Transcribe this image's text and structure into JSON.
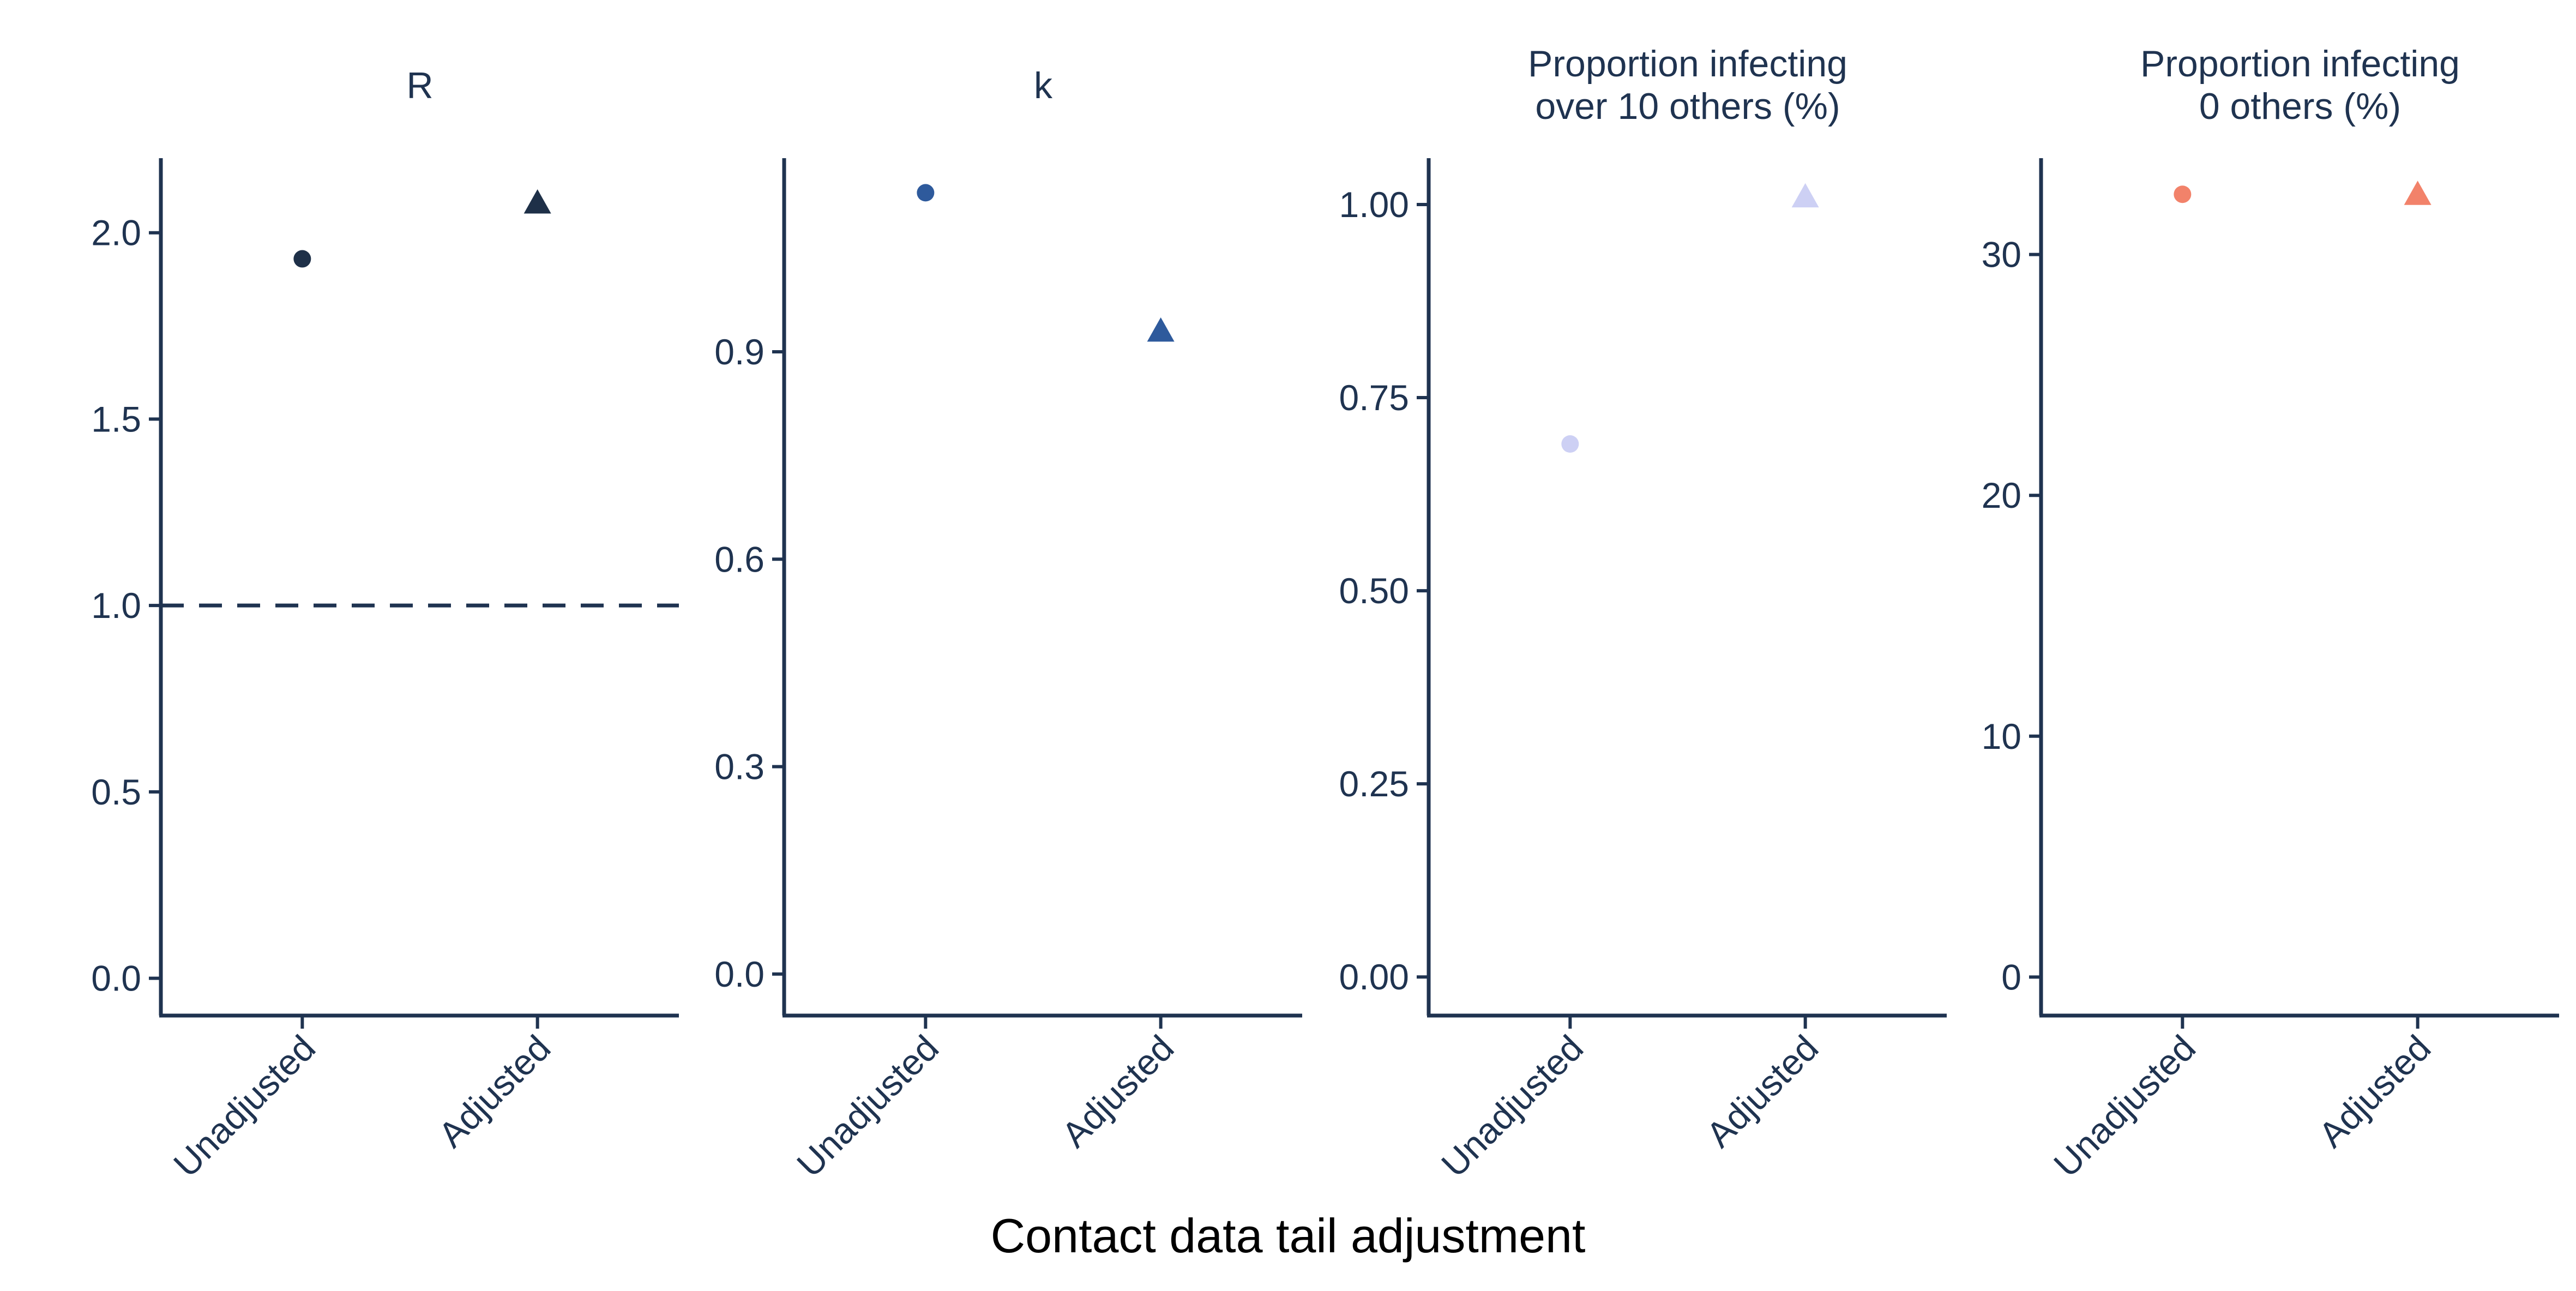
{
  "colors": {
    "axis": "#1f3350",
    "text": "#1f3350",
    "series_R": "#1e3048",
    "series_k": "#2e5a9c",
    "series_over10": "#cdd0f4",
    "series_zero": "#f2826a"
  },
  "figure": {
    "xlabel": "Contact data tail adjustment"
  },
  "chart_data": [
    {
      "type": "scatter",
      "title": "R",
      "categories": [
        "Unadjusted",
        "Adjusted"
      ],
      "values": [
        1.93,
        2.08
      ],
      "markers": [
        "circle",
        "triangle"
      ],
      "color": "#1e3048",
      "ylim": [
        -0.1,
        2.2
      ],
      "yticks": [
        0.0,
        0.5,
        1.0,
        1.5,
        2.0
      ],
      "ytick_labels": [
        "0.0",
        "0.5",
        "1.0",
        "1.5",
        "2.0"
      ],
      "reference_line": {
        "y": 1.0,
        "style": "dashed"
      },
      "grid": false
    },
    {
      "type": "scatter",
      "title": "k",
      "categories": [
        "Unadjusted",
        "Adjusted"
      ],
      "values": [
        1.13,
        0.93
      ],
      "markers": [
        "circle",
        "triangle"
      ],
      "color": "#2e5a9c",
      "ylim": [
        -0.06,
        1.18
      ],
      "yticks": [
        0.0,
        0.3,
        0.6,
        0.9
      ],
      "ytick_labels": [
        "0.0",
        "0.3",
        "0.6",
        "0.9"
      ],
      "grid": false
    },
    {
      "type": "scatter",
      "title": "Proportion infecting\nover 10 others (%)",
      "categories": [
        "Unadjusted",
        "Adjusted"
      ],
      "values": [
        0.69,
        1.01
      ],
      "markers": [
        "circle",
        "triangle"
      ],
      "color": "#cdd0f4",
      "ylim": [
        -0.05,
        1.06
      ],
      "yticks": [
        0.0,
        0.25,
        0.5,
        0.75,
        1.0
      ],
      "ytick_labels": [
        "0.00",
        "0.25",
        "0.50",
        "0.75",
        "1.00"
      ],
      "grid": false
    },
    {
      "type": "scatter",
      "title": "Proportion infecting\n0 others (%)",
      "categories": [
        "Unadjusted",
        "Adjusted"
      ],
      "values": [
        32.5,
        32.5
      ],
      "markers": [
        "circle",
        "triangle"
      ],
      "color": "#f2826a",
      "ylim": [
        -1.6,
        34.0
      ],
      "yticks": [
        0,
        10,
        20,
        30
      ],
      "ytick_labels": [
        "0",
        "10",
        "20",
        "30"
      ],
      "grid": false
    }
  ]
}
